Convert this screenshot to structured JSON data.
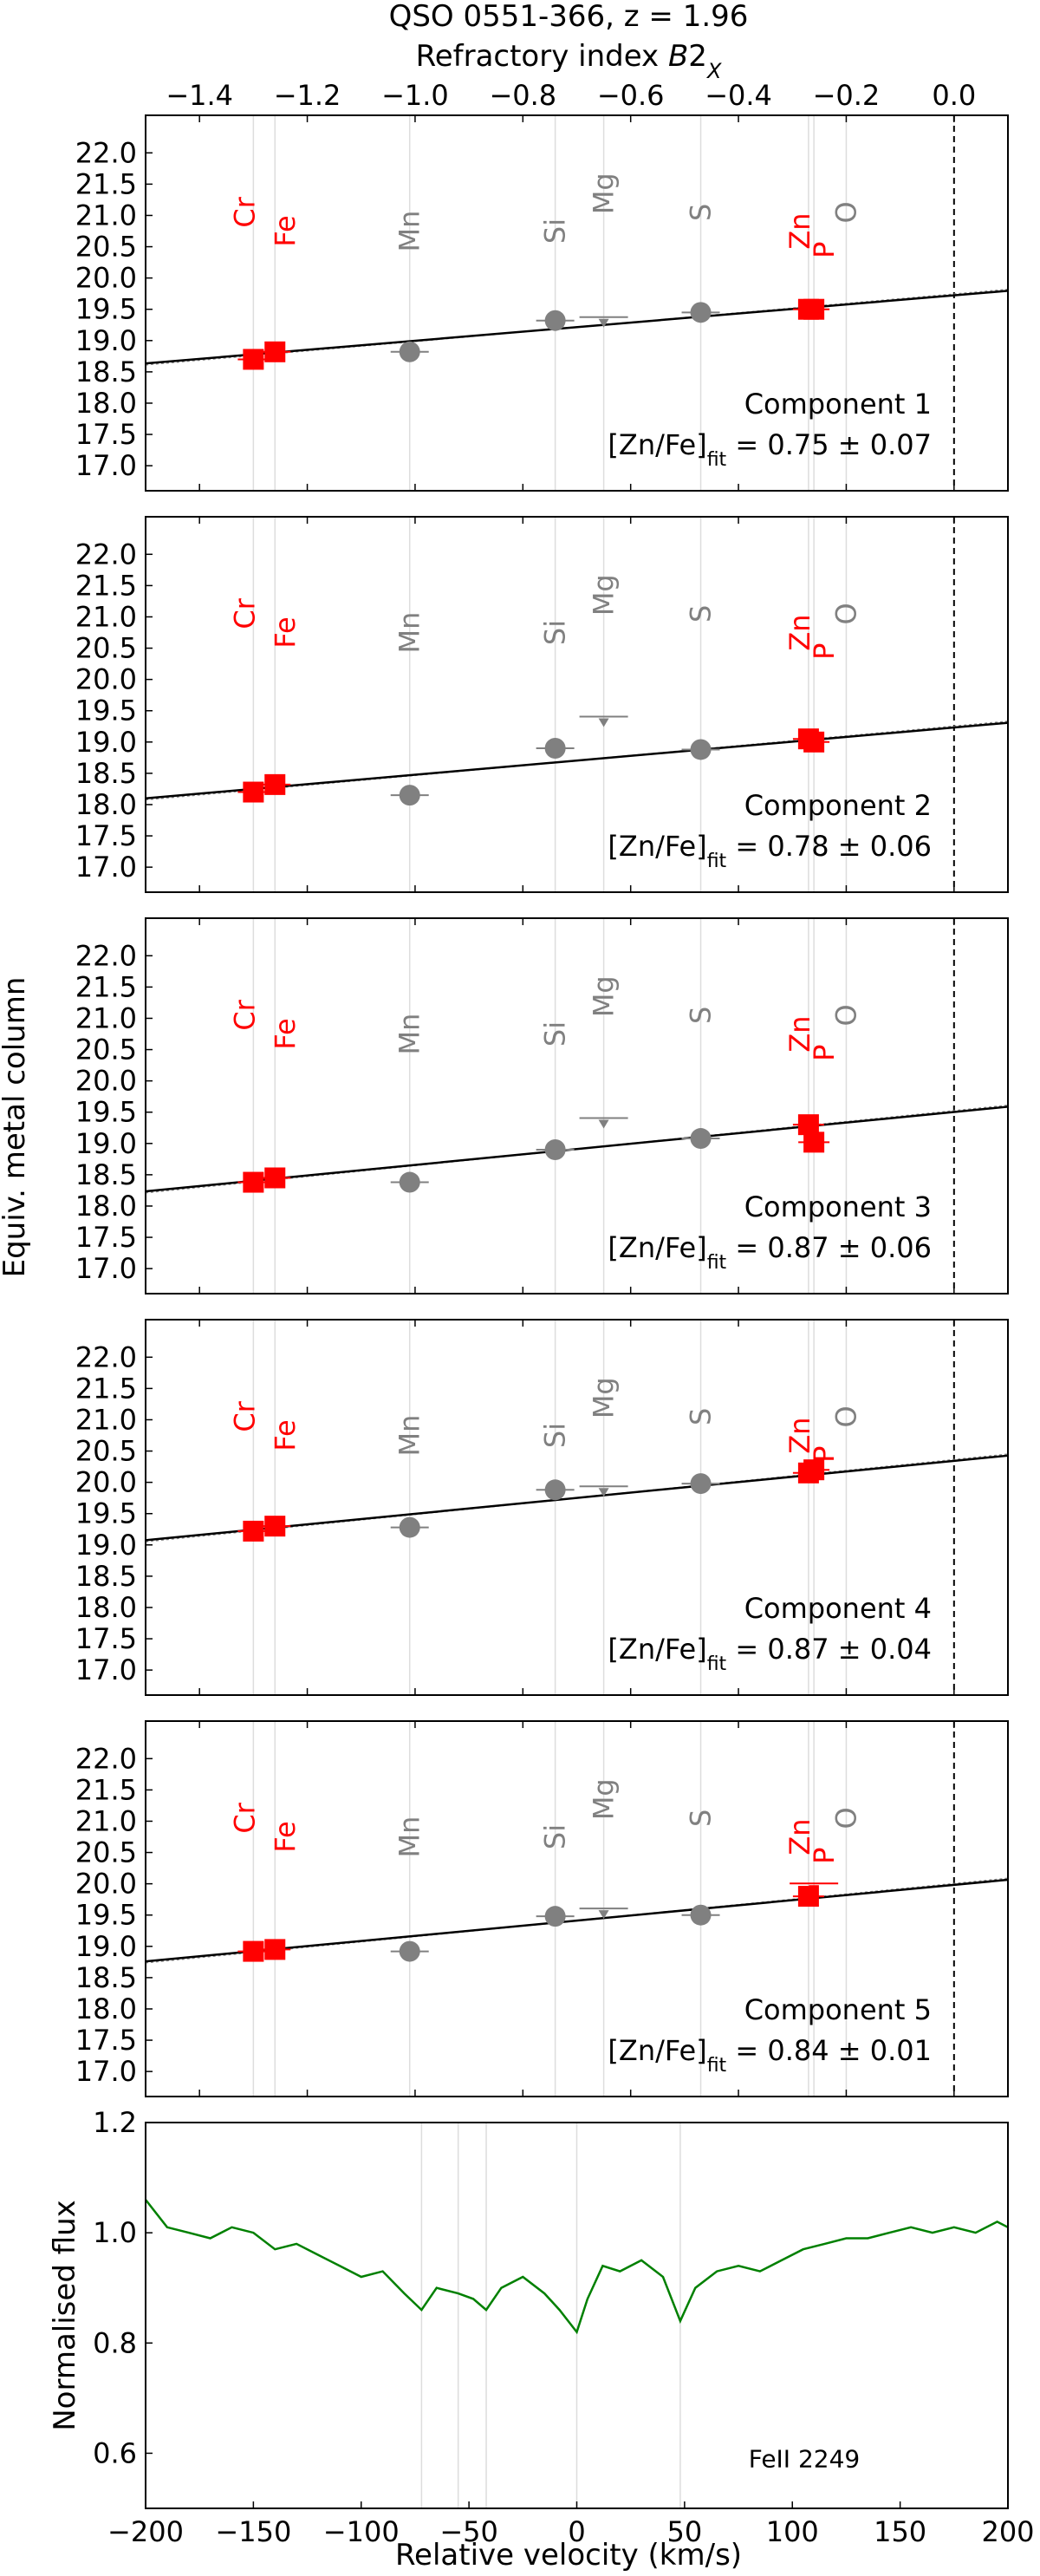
{
  "title": "QSO 0551-366, z = 1.96",
  "top_axis": {
    "label_pre": "Refractory index ",
    "label_italic": "B",
    "label_post": "2",
    "label_sub": "X",
    "ticks": [
      "−1.4",
      "−1.2",
      "−1.0",
      "−0.8",
      "−0.6",
      "−0.4",
      "−0.2",
      "0.0"
    ],
    "range": [
      -1.5,
      0.1
    ]
  },
  "shared_ylabel": "Equiv. metal column",
  "colors": {
    "refractory": "#ff0000",
    "volatile": "#808080",
    "fit": "#000000",
    "spectrum": "#008000",
    "vline": "#dddddd"
  },
  "chart_data": [
    {
      "type": "scatter",
      "name": "Component 1",
      "annotation_line1": "Component 1",
      "fit_label": "[Zn/Fe]",
      "fit_sub": "fit",
      "fit_value": " = 0.75 ± 0.07",
      "x_axis": "Refractory index B2_X",
      "xlim": [
        -1.5,
        0.1
      ],
      "ylim": [
        16.6,
        22.6
      ],
      "yticks": [
        "17.0",
        "17.5",
        "18.0",
        "18.5",
        "19.0",
        "19.5",
        "20.0",
        "20.5",
        "21.0",
        "21.5",
        "22.0"
      ],
      "elements": [
        {
          "el": "Cr",
          "x": -1.3,
          "y": 18.7,
          "group": "red"
        },
        {
          "el": "Fe",
          "x": -1.26,
          "y": 18.82,
          "group": "red"
        },
        {
          "el": "Mn",
          "x": -1.01,
          "y": 18.82,
          "group": "gray"
        },
        {
          "el": "Si",
          "x": -0.74,
          "y": 19.32,
          "group": "gray"
        },
        {
          "el": "Mg",
          "x": -0.65,
          "y": 19.32,
          "group": "gray",
          "limit": true
        },
        {
          "el": "S",
          "x": -0.47,
          "y": 19.45,
          "group": "gray"
        },
        {
          "el": "Zn",
          "x": -0.27,
          "y": 19.5,
          "group": "red"
        },
        {
          "el": "P",
          "x": -0.26,
          "y": 19.5,
          "group": "red"
        },
        {
          "el": "O",
          "x": -0.2,
          "y": null,
          "group": "gray"
        }
      ],
      "fit": {
        "y_at_x0": 19.74,
        "slope": 0.75
      }
    },
    {
      "type": "scatter",
      "name": "Component 2",
      "annotation_line1": "Component 2",
      "fit_label": "[Zn/Fe]",
      "fit_sub": "fit",
      "fit_value": " = 0.78 ± 0.06",
      "x_axis": "Refractory index B2_X",
      "xlim": [
        -1.5,
        0.1
      ],
      "ylim": [
        16.6,
        22.6
      ],
      "yticks": [
        "17.0",
        "17.5",
        "18.0",
        "18.5",
        "19.0",
        "19.5",
        "20.0",
        "20.5",
        "21.0",
        "21.5",
        "22.0"
      ],
      "elements": [
        {
          "el": "Cr",
          "x": -1.3,
          "y": 18.2,
          "group": "red"
        },
        {
          "el": "Fe",
          "x": -1.26,
          "y": 18.32,
          "group": "red"
        },
        {
          "el": "Mn",
          "x": -1.01,
          "y": 18.15,
          "group": "gray"
        },
        {
          "el": "Si",
          "x": -0.74,
          "y": 18.9,
          "group": "gray"
        },
        {
          "el": "Mg",
          "x": -0.65,
          "y": 19.35,
          "group": "gray",
          "limit": true
        },
        {
          "el": "S",
          "x": -0.47,
          "y": 18.88,
          "group": "gray"
        },
        {
          "el": "Zn",
          "x": -0.27,
          "y": 19.05,
          "group": "red"
        },
        {
          "el": "P",
          "x": -0.26,
          "y": 19.0,
          "group": "red"
        },
        {
          "el": "O",
          "x": -0.2,
          "y": null,
          "group": "gray"
        }
      ],
      "fit": {
        "y_at_x0": 19.25,
        "slope": 0.78
      }
    },
    {
      "type": "scatter",
      "name": "Component 3",
      "annotation_line1": "Component 3",
      "fit_label": "[Zn/Fe]",
      "fit_sub": "fit",
      "fit_value": " = 0.87 ± 0.06",
      "x_axis": "Refractory index B2_X",
      "xlim": [
        -1.5,
        0.1
      ],
      "ylim": [
        16.6,
        22.6
      ],
      "yticks": [
        "17.0",
        "17.5",
        "18.0",
        "18.5",
        "19.0",
        "19.5",
        "20.0",
        "20.5",
        "21.0",
        "21.5",
        "22.0"
      ],
      "elements": [
        {
          "el": "Cr",
          "x": -1.3,
          "y": 18.38,
          "group": "red"
        },
        {
          "el": "Fe",
          "x": -1.26,
          "y": 18.45,
          "group": "red"
        },
        {
          "el": "Mn",
          "x": -1.01,
          "y": 18.38,
          "group": "gray"
        },
        {
          "el": "Si",
          "x": -0.74,
          "y": 18.9,
          "group": "gray"
        },
        {
          "el": "Mg",
          "x": -0.65,
          "y": 19.35,
          "group": "gray",
          "limit": true
        },
        {
          "el": "S",
          "x": -0.47,
          "y": 19.08,
          "group": "gray"
        },
        {
          "el": "Zn",
          "x": -0.27,
          "y": 19.3,
          "group": "red"
        },
        {
          "el": "P",
          "x": -0.26,
          "y": 19.02,
          "group": "red"
        },
        {
          "el": "O",
          "x": -0.2,
          "y": null,
          "group": "gray"
        }
      ],
      "fit": {
        "y_at_x0": 19.52,
        "slope": 0.87
      }
    },
    {
      "type": "scatter",
      "name": "Component 4",
      "annotation_line1": "Component 4",
      "fit_label": "[Zn/Fe]",
      "fit_sub": "fit",
      "fit_value": " = 0.87 ± 0.04",
      "x_axis": "Refractory index B2_X",
      "xlim": [
        -1.5,
        0.1
      ],
      "ylim": [
        16.6,
        22.6
      ],
      "yticks": [
        "17.0",
        "17.5",
        "18.0",
        "18.5",
        "19.0",
        "19.5",
        "20.0",
        "20.5",
        "21.0",
        "21.5",
        "22.0"
      ],
      "elements": [
        {
          "el": "Cr",
          "x": -1.3,
          "y": 19.22,
          "group": "red"
        },
        {
          "el": "Fe",
          "x": -1.26,
          "y": 19.3,
          "group": "red"
        },
        {
          "el": "Mn",
          "x": -1.01,
          "y": 19.28,
          "group": "gray"
        },
        {
          "el": "Si",
          "x": -0.74,
          "y": 19.88,
          "group": "gray"
        },
        {
          "el": "Mg",
          "x": -0.65,
          "y": 19.88,
          "group": "gray",
          "limit": true
        },
        {
          "el": "S",
          "x": -0.47,
          "y": 19.98,
          "group": "gray"
        },
        {
          "el": "Zn",
          "x": -0.27,
          "y": 20.15,
          "group": "red"
        },
        {
          "el": "P",
          "x": -0.26,
          "y": 20.2,
          "group": "red"
        },
        {
          "el": "O",
          "x": -0.2,
          "y": null,
          "group": "gray"
        }
      ],
      "fit": {
        "y_at_x0": 20.36,
        "slope": 0.87
      }
    },
    {
      "type": "scatter",
      "name": "Component 5",
      "annotation_line1": "Component 5",
      "fit_label": "[Zn/Fe]",
      "fit_sub": "fit",
      "fit_value": " = 0.84 ± 0.01",
      "x_axis": "Refractory index B2_X",
      "xlim": [
        -1.5,
        0.1
      ],
      "ylim": [
        16.6,
        22.6
      ],
      "yticks": [
        "17.0",
        "17.5",
        "18.0",
        "18.5",
        "19.0",
        "19.5",
        "20.0",
        "20.5",
        "21.0",
        "21.5",
        "22.0"
      ],
      "elements": [
        {
          "el": "Cr",
          "x": -1.3,
          "y": 18.92,
          "group": "red"
        },
        {
          "el": "Fe",
          "x": -1.26,
          "y": 18.95,
          "group": "red"
        },
        {
          "el": "Mn",
          "x": -1.01,
          "y": 18.92,
          "group": "gray"
        },
        {
          "el": "Si",
          "x": -0.74,
          "y": 19.48,
          "group": "gray"
        },
        {
          "el": "Mg",
          "x": -0.65,
          "y": 19.55,
          "group": "gray",
          "limit": true
        },
        {
          "el": "S",
          "x": -0.47,
          "y": 19.5,
          "group": "gray"
        },
        {
          "el": "Zn",
          "x": -0.27,
          "y": 19.8,
          "group": "red"
        },
        {
          "el": "P",
          "x": -0.26,
          "y": 19.95,
          "group": "red",
          "limit": true
        },
        {
          "el": "O",
          "x": -0.2,
          "y": null,
          "group": "gray"
        }
      ],
      "fit": {
        "y_at_x0": 20.0,
        "slope": 0.84
      }
    },
    {
      "type": "line",
      "name": "FeII 2249",
      "annotation": "FeII 2249",
      "xlabel": "Relative velocity (km/s)",
      "ylabel": "Normalised flux",
      "xlim": [
        -200,
        200
      ],
      "ylim": [
        0.5,
        1.2
      ],
      "xticks": [
        "−200",
        "−150",
        "−100",
        "−50",
        "0",
        "50",
        "100",
        "150",
        "200"
      ],
      "yticks": [
        "0.6",
        "0.8",
        "1.0",
        "1.2"
      ],
      "component_velocities": [
        -72,
        -55,
        -42,
        0,
        48
      ],
      "spectrum": {
        "x": [
          -200,
          -190,
          -180,
          -170,
          -160,
          -150,
          -140,
          -130,
          -120,
          -110,
          -100,
          -90,
          -80,
          -72,
          -65,
          -55,
          -48,
          -42,
          -35,
          -25,
          -15,
          -8,
          0,
          5,
          12,
          20,
          30,
          40,
          48,
          55,
          65,
          75,
          85,
          95,
          105,
          115,
          125,
          135,
          145,
          155,
          165,
          175,
          185,
          195,
          200
        ],
        "y": [
          1.06,
          1.01,
          1.0,
          0.99,
          1.01,
          1.0,
          0.97,
          0.98,
          0.96,
          0.94,
          0.92,
          0.93,
          0.89,
          0.86,
          0.9,
          0.89,
          0.88,
          0.86,
          0.9,
          0.92,
          0.89,
          0.86,
          0.82,
          0.88,
          0.94,
          0.93,
          0.95,
          0.92,
          0.84,
          0.9,
          0.93,
          0.94,
          0.93,
          0.95,
          0.97,
          0.98,
          0.99,
          0.99,
          1.0,
          1.01,
          1.0,
          1.01,
          1.0,
          1.02,
          1.01
        ]
      }
    }
  ]
}
